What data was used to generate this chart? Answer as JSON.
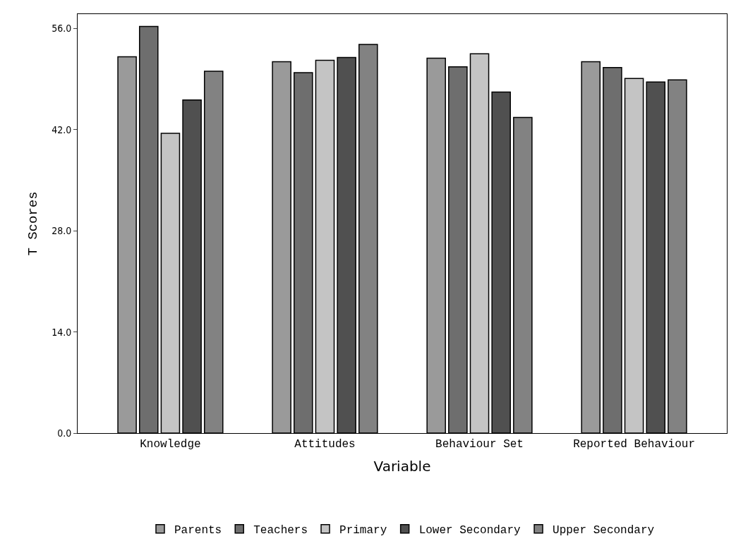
{
  "chart_data": {
    "type": "bar",
    "xlabel": "Variable",
    "ylabel": "T Scores",
    "categories": [
      "Knowledge",
      "Attitudes",
      "Behaviour Set",
      "Reported Behaviour"
    ],
    "series": [
      {
        "name": "Parents",
        "color": "#9a9a9a",
        "values": [
          52.1,
          51.4,
          51.9,
          51.4
        ]
      },
      {
        "name": "Teachers",
        "color": "#6e6e6e",
        "values": [
          56.3,
          49.9,
          50.7,
          50.6
        ]
      },
      {
        "name": "Primary",
        "color": "#c4c4c4",
        "values": [
          41.5,
          51.6,
          52.5,
          49.1
        ]
      },
      {
        "name": "Lower Secondary",
        "color": "#505050",
        "values": [
          46.1,
          52.0,
          47.2,
          48.6
        ]
      },
      {
        "name": "Upper Secondary",
        "color": "#828282",
        "values": [
          50.1,
          53.8,
          43.7,
          48.9
        ]
      }
    ],
    "ylim": [
      0,
      58
    ],
    "yticks": [
      {
        "value": 0,
        "label": "0.0"
      },
      {
        "value": 14,
        "label": "14.0"
      },
      {
        "value": 28,
        "label": "28.0"
      },
      {
        "value": 42,
        "label": "42.0"
      },
      {
        "value": 56,
        "label": "56.0"
      }
    ],
    "grid": false,
    "legend": "bottom"
  }
}
